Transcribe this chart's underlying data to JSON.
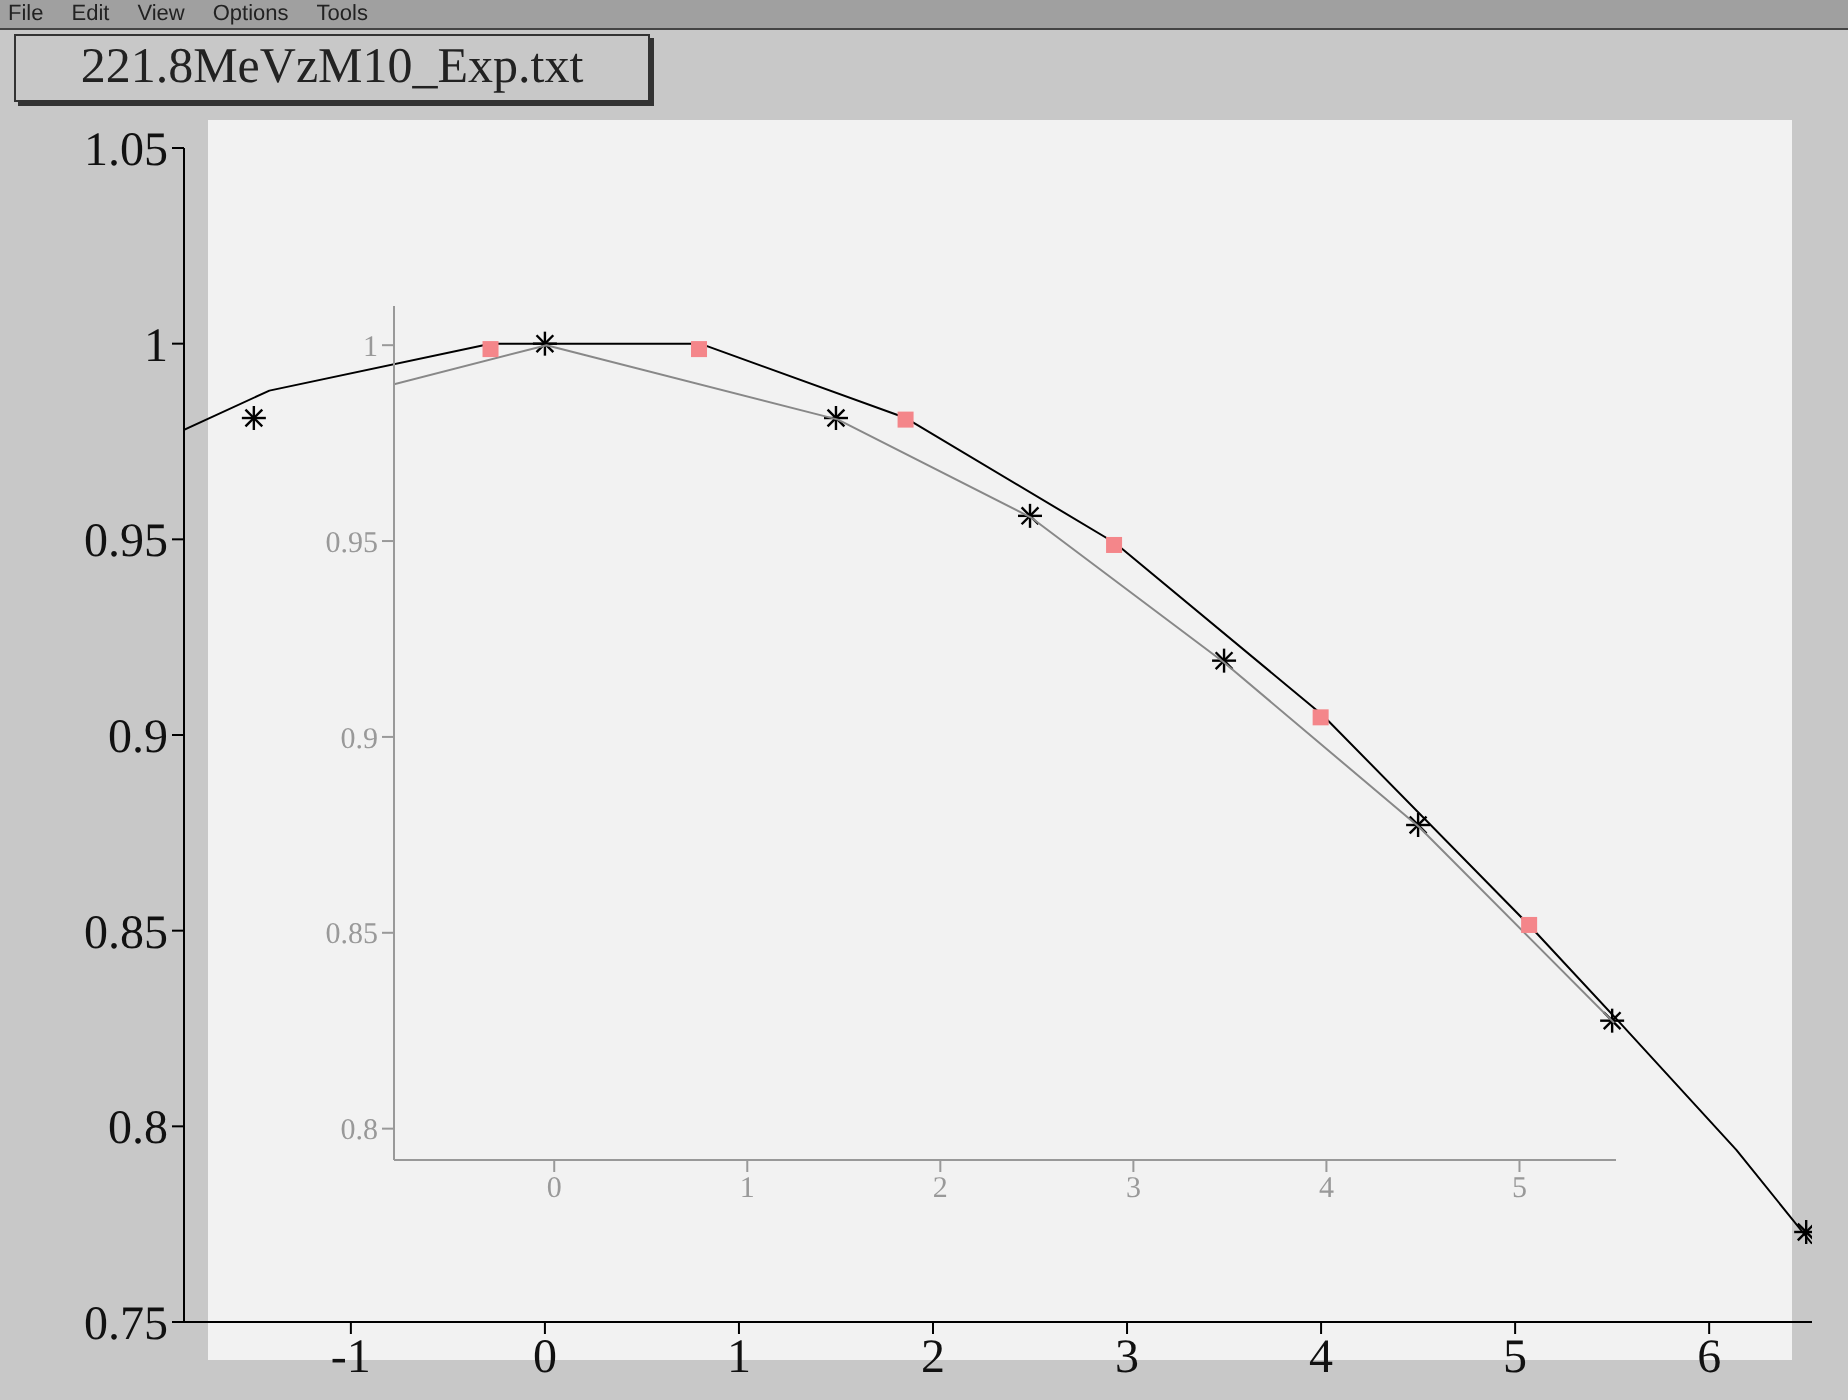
{
  "chart_data": [
    {
      "type": "line",
      "title": "221.8MeVzM10_Exp.txt",
      "annotations": [
        "File",
        "Edit",
        "View",
        "Options",
        "Tools"
      ],
      "xlim": [
        -1.86,
        6.53
      ],
      "ylim": [
        0.75,
        1.05
      ],
      "xticks": [
        -1,
        0,
        1,
        2,
        3,
        4,
        5,
        6
      ],
      "yticks": [
        0.75,
        0.8,
        0.85,
        0.9,
        0.95,
        1,
        1.05
      ],
      "series": [
        {
          "color": "#000000",
          "marker": "none",
          "x": [
            -1.86,
            -1.42,
            -0.28,
            0.8,
            1.86,
            2.94,
            4.01,
            5.08,
            5.53,
            6.14,
            6.53
          ],
          "values": [
            0.978,
            0.988,
            1.0,
            1.0,
            0.981,
            0.949,
            0.905,
            0.851,
            0.827,
            0.794,
            0.77
          ]
        },
        {
          "type": "scatter",
          "color": "#000000",
          "marker": "cross",
          "x": [
            -1.5,
            0,
            1.5,
            2.5,
            3.5,
            4.5,
            5.5,
            6.5
          ],
          "values": [
            0.981,
            1.0,
            0.981,
            0.956,
            0.919,
            0.877,
            0.827,
            0.773
          ]
        }
      ]
    },
    {
      "type": "line",
      "xlim": [
        -0.83,
        5.5
      ],
      "ylim": [
        0.792,
        1.01
      ],
      "xticks": [
        0,
        1,
        2,
        3,
        4,
        5
      ],
      "yticks": [
        0.8,
        0.85,
        0.9,
        0.95,
        1
      ],
      "series": [
        {
          "color": "#888888",
          "marker": "none",
          "x": [
            -0.83,
            -0.04,
            1.47,
            2.47,
            3.47,
            4.48,
            5.49
          ],
          "values": [
            0.99,
            1.0,
            0.981,
            0.956,
            0.919,
            0.877,
            0.827
          ]
        },
        {
          "type": "scatter",
          "color": "#f4868a",
          "marker": "square",
          "x": [
            -0.33,
            0.75,
            1.82,
            2.9,
            3.97,
            5.05
          ],
          "values": [
            0.999,
            0.999,
            0.981,
            0.949,
            0.905,
            0.852
          ]
        }
      ]
    }
  ]
}
